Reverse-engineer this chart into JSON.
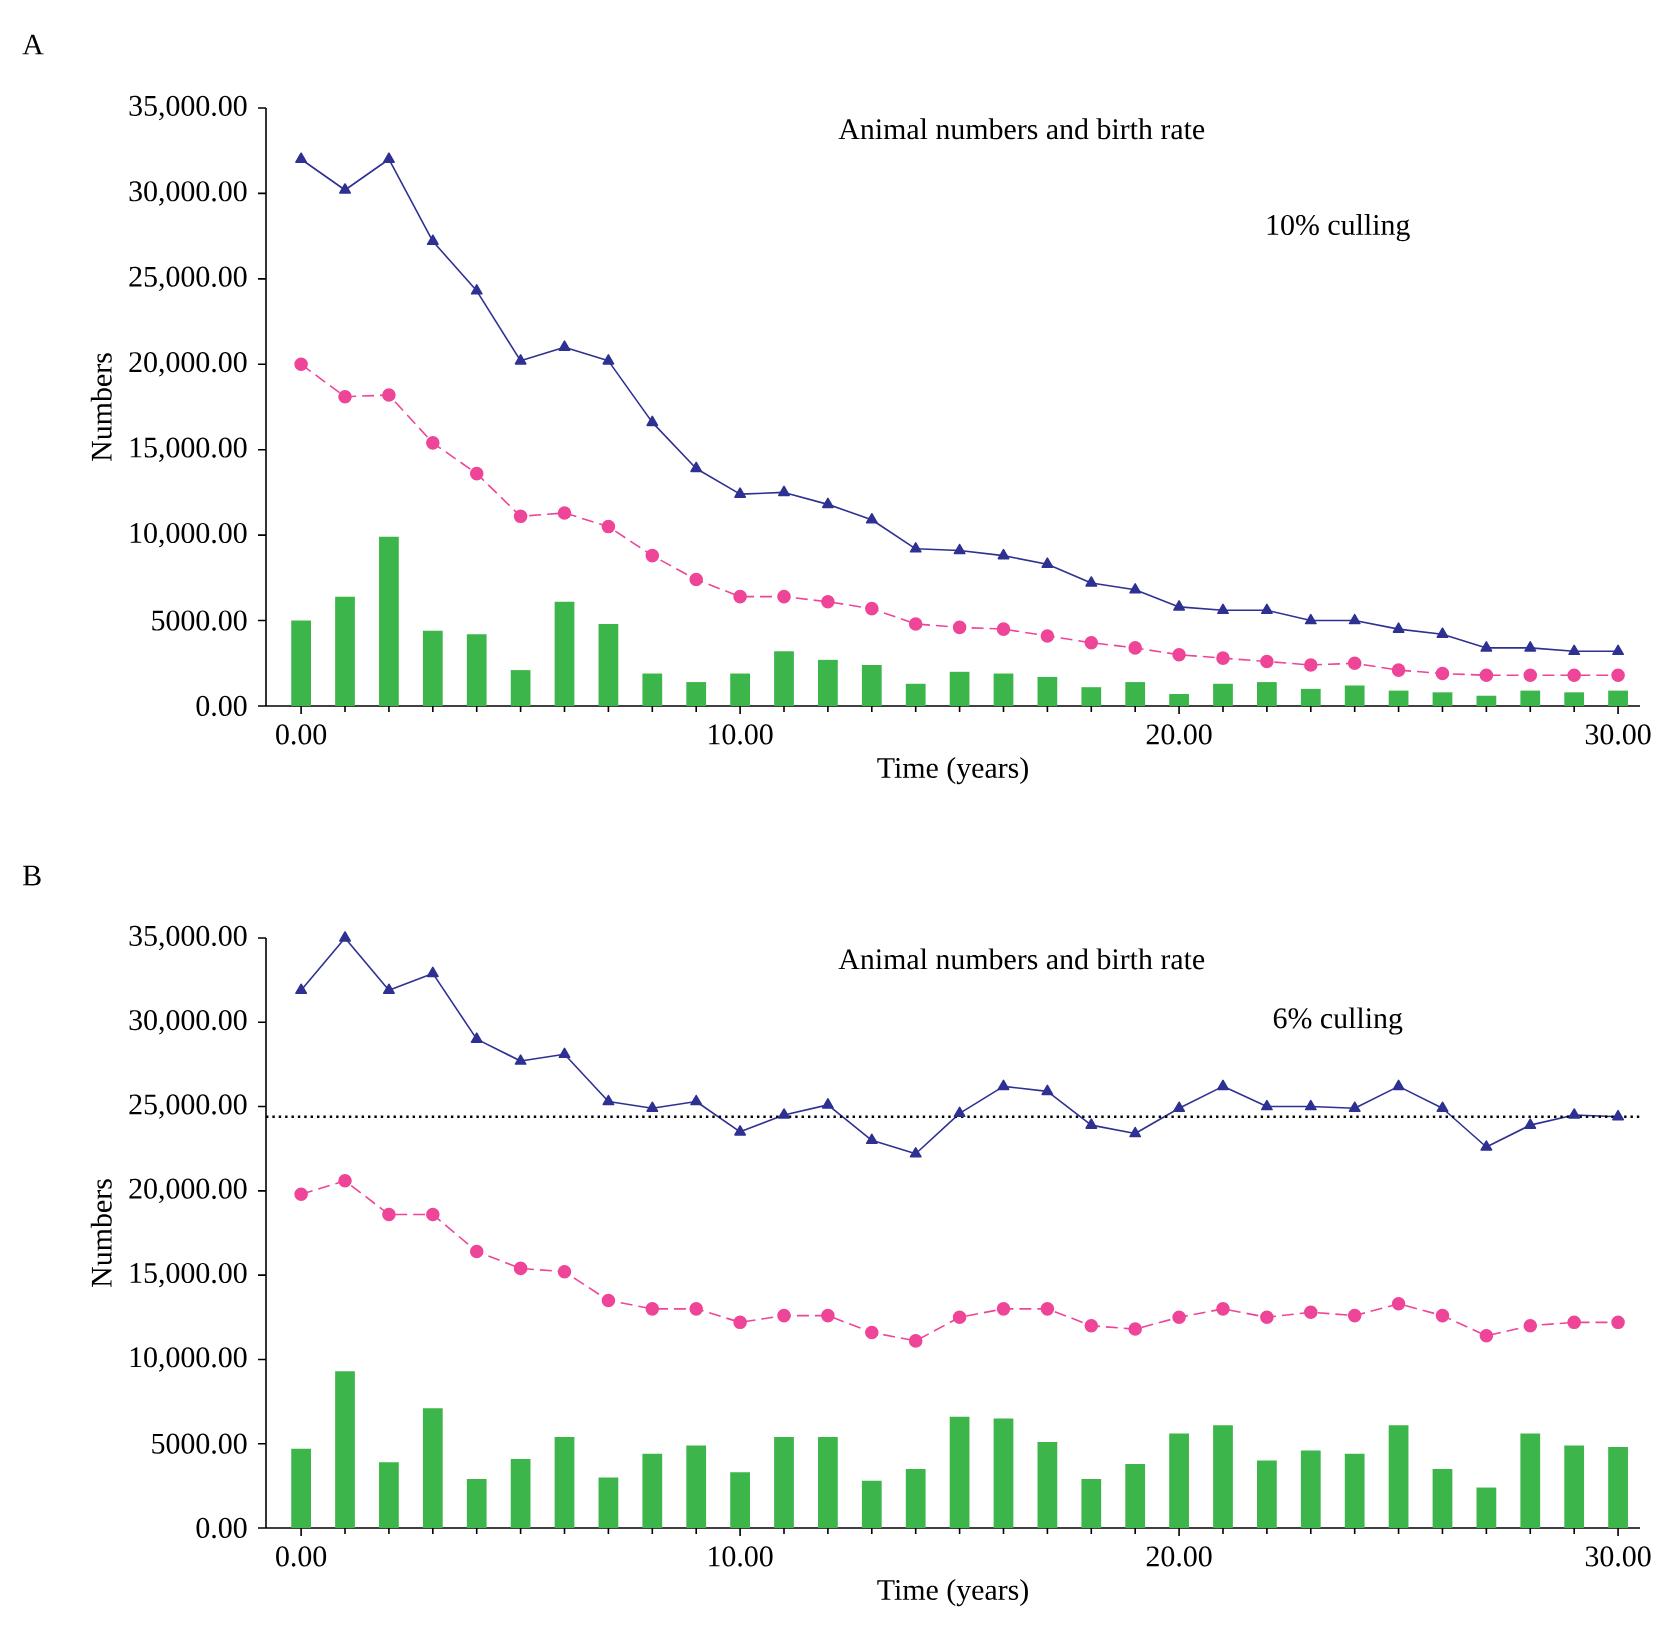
{
  "chart_data": [
    {
      "type": "bar",
      "title": "Animal numbers and birth rate",
      "subtitle": "10% culling",
      "xlabel": "Time (years)",
      "ylabel": "Numbers",
      "annotations": [
        "A"
      ],
      "x": [
        0,
        1,
        2,
        3,
        4,
        5,
        6,
        7,
        8,
        9,
        10,
        11,
        12,
        13,
        14,
        15,
        16,
        17,
        18,
        19,
        20,
        21,
        22,
        23,
        24,
        25,
        26,
        27,
        28,
        29,
        30
      ],
      "xlim": [
        -0.8,
        30.5
      ],
      "xticks": [
        {
          "value": 0,
          "label": "0.00"
        },
        {
          "value": 10,
          "label": "10.00"
        },
        {
          "value": 20,
          "label": "20.00"
        },
        {
          "value": 30,
          "label": "30.00"
        }
      ],
      "ylim": [
        0,
        35000
      ],
      "yticks": [
        {
          "value": 0,
          "label": "0.00"
        },
        {
          "value": 5000,
          "label": "5000.00"
        },
        {
          "value": 10000,
          "label": "10,000.00"
        },
        {
          "value": 15000,
          "label": "15,000.00"
        },
        {
          "value": 20000,
          "label": "20,000.00"
        },
        {
          "value": 25000,
          "label": "25,000.00"
        },
        {
          "value": 30000,
          "label": "30,000.00"
        },
        {
          "value": 35000,
          "label": "35,000.00"
        }
      ],
      "grid": false,
      "series": [
        {
          "color": "#3cb54a",
          "values": [
            5000,
            6400,
            9900,
            4400,
            4200,
            2100,
            6100,
            4800,
            1900,
            1400,
            1900,
            3200,
            2700,
            2400,
            1300,
            2000,
            1900,
            1700,
            1100,
            1400,
            700,
            1300,
            1400,
            1000,
            1200,
            900,
            800,
            600,
            900,
            800,
            900
          ]
        },
        {
          "type": "line",
          "color": "#ee4598",
          "marker": "circle",
          "line_style": "dashed",
          "values": [
            20000,
            18100,
            18200,
            15400,
            13600,
            11100,
            11300,
            10500,
            8800,
            7400,
            6400,
            6400,
            6100,
            5700,
            4800,
            4600,
            4500,
            4100,
            3700,
            3400,
            3000,
            2800,
            2600,
            2400,
            2500,
            2100,
            1900,
            1800,
            1800,
            1800,
            1800
          ]
        },
        {
          "type": "line",
          "color": "#2e3192",
          "marker": "triangle",
          "line_style": "solid",
          "values": [
            32000,
            30200,
            32000,
            27200,
            24300,
            20200,
            21000,
            20200,
            16600,
            13900,
            12400,
            12500,
            11800,
            10900,
            9200,
            9100,
            8800,
            8300,
            7200,
            6800,
            5800,
            5600,
            5600,
            5000,
            5000,
            4500,
            4200,
            3400,
            3400,
            3200,
            3200
          ]
        }
      ]
    },
    {
      "type": "bar",
      "title": "Animal numbers and birth rate",
      "subtitle": "6% culling",
      "xlabel": "Time (years)",
      "ylabel": "Numbers",
      "annotations": [
        "B"
      ],
      "x": [
        0,
        1,
        2,
        3,
        4,
        5,
        6,
        7,
        8,
        9,
        10,
        11,
        12,
        13,
        14,
        15,
        16,
        17,
        18,
        19,
        20,
        21,
        22,
        23,
        24,
        25,
        26,
        27,
        28,
        29,
        30
      ],
      "xlim": [
        -0.8,
        30.5
      ],
      "xticks": [
        {
          "value": 0,
          "label": "0.00"
        },
        {
          "value": 10,
          "label": "10.00"
        },
        {
          "value": 20,
          "label": "20.00"
        },
        {
          "value": 30,
          "label": "30.00"
        }
      ],
      "ylim": [
        0,
        35000
      ],
      "yticks": [
        {
          "value": 0,
          "label": "0.00"
        },
        {
          "value": 5000,
          "label": "5000.00"
        },
        {
          "value": 10000,
          "label": "10,000.00"
        },
        {
          "value": 15000,
          "label": "15,000.00"
        },
        {
          "value": 20000,
          "label": "20,000.00"
        },
        {
          "value": 25000,
          "label": "25,000.00"
        },
        {
          "value": 30000,
          "label": "30,000.00"
        },
        {
          "value": 35000,
          "label": "35,000.00"
        }
      ],
      "grid": false,
      "ref_lines": [
        {
          "axis": "y",
          "value": 24400,
          "color": "#000000",
          "line_style": "dotted"
        }
      ],
      "series": [
        {
          "color": "#3cb54a",
          "values": [
            4700,
            9300,
            3900,
            7100,
            2900,
            4100,
            5400,
            3000,
            4400,
            4900,
            3300,
            5400,
            5400,
            2800,
            3500,
            6600,
            6500,
            5100,
            2900,
            3800,
            5600,
            6100,
            4000,
            4600,
            4400,
            6100,
            3500,
            2400,
            5600,
            4900,
            4800
          ]
        },
        {
          "type": "line",
          "color": "#ee4598",
          "marker": "circle",
          "line_style": "dashed",
          "values": [
            19800,
            20600,
            18600,
            18600,
            16400,
            15400,
            15200,
            13500,
            13000,
            13000,
            12200,
            12600,
            12600,
            11600,
            11100,
            12500,
            13000,
            13000,
            12000,
            11800,
            12500,
            13000,
            12500,
            12800,
            12600,
            13300,
            12600,
            11400,
            12000,
            12200,
            12200
          ]
        },
        {
          "type": "line",
          "color": "#2e3192",
          "marker": "triangle",
          "line_style": "solid",
          "values": [
            31900,
            35000,
            31900,
            32900,
            29000,
            27700,
            28100,
            25300,
            24900,
            25300,
            23500,
            24500,
            25100,
            23000,
            22200,
            24600,
            26200,
            25900,
            23900,
            23400,
            24900,
            26200,
            25000,
            25000,
            24900,
            26200,
            24900,
            22600,
            23900,
            24500,
            24400
          ]
        }
      ]
    }
  ]
}
